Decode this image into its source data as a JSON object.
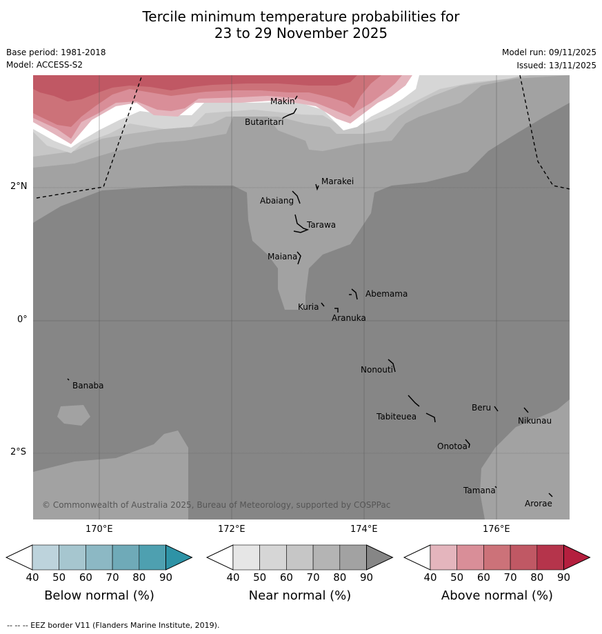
{
  "title": {
    "line1": "Tercile minimum temperature probabilities for",
    "line2": "23 to 29 November 2025"
  },
  "meta": {
    "base_period": "Base period: 1981-2018",
    "model": "Model: ACCESS-S2",
    "model_run": "Model run: 09/11/2025",
    "issued": "Issued: 13/11/2025"
  },
  "map": {
    "copyright": "© Commonwealth of Australia 2025, Bureau of Meteorology, supported by COSPPac",
    "lat_labels": [
      "2°N",
      "0°",
      "2°S"
    ],
    "lon_labels": [
      "170°E",
      "172°E",
      "174°E",
      "176°E"
    ],
    "islands": {
      "makin": "Makin",
      "butaritari": "Butaritari",
      "marakei": "Marakei",
      "abaiang": "Abaiang",
      "tarawa": "Tarawa",
      "maiana": "Maiana",
      "abemama": "Abemama",
      "kuria": "Kuria",
      "aranuka": "Aranuka",
      "nonouti": "Nonouti",
      "banaba": "Banaba",
      "beru": "Beru",
      "tabiteuea": "Tabiteuea",
      "nikunau": "Nikunau",
      "onotoa": "Onotoa",
      "tamana": "Tamana",
      "arorae": "Arorae"
    }
  },
  "colorbars": [
    {
      "title": "Below normal (%)",
      "ticks": [
        "40",
        "50",
        "60",
        "70",
        "80",
        "90"
      ],
      "colors": [
        "#bdd3dc",
        "#a6c6cf",
        "#8cb8c4",
        "#6faab8",
        "#4ea0b0",
        "#2e93a6"
      ]
    },
    {
      "title": "Near normal (%)",
      "ticks": [
        "40",
        "50",
        "60",
        "70",
        "80",
        "90"
      ],
      "colors": [
        "#e6e6e6",
        "#d6d6d6",
        "#c6c6c6",
        "#b4b4b4",
        "#a2a2a2",
        "#868686"
      ]
    },
    {
      "title": "Above normal (%)",
      "ticks": [
        "40",
        "50",
        "60",
        "70",
        "80",
        "90"
      ],
      "colors": [
        "#e4b5bd",
        "#d98e98",
        "#cc7279",
        "#c05864",
        "#b5344b",
        "#b41f3e"
      ]
    }
  ],
  "footer": "--  --  -- EEZ border V11 (Flanders Marine Institute, 2019)."
}
